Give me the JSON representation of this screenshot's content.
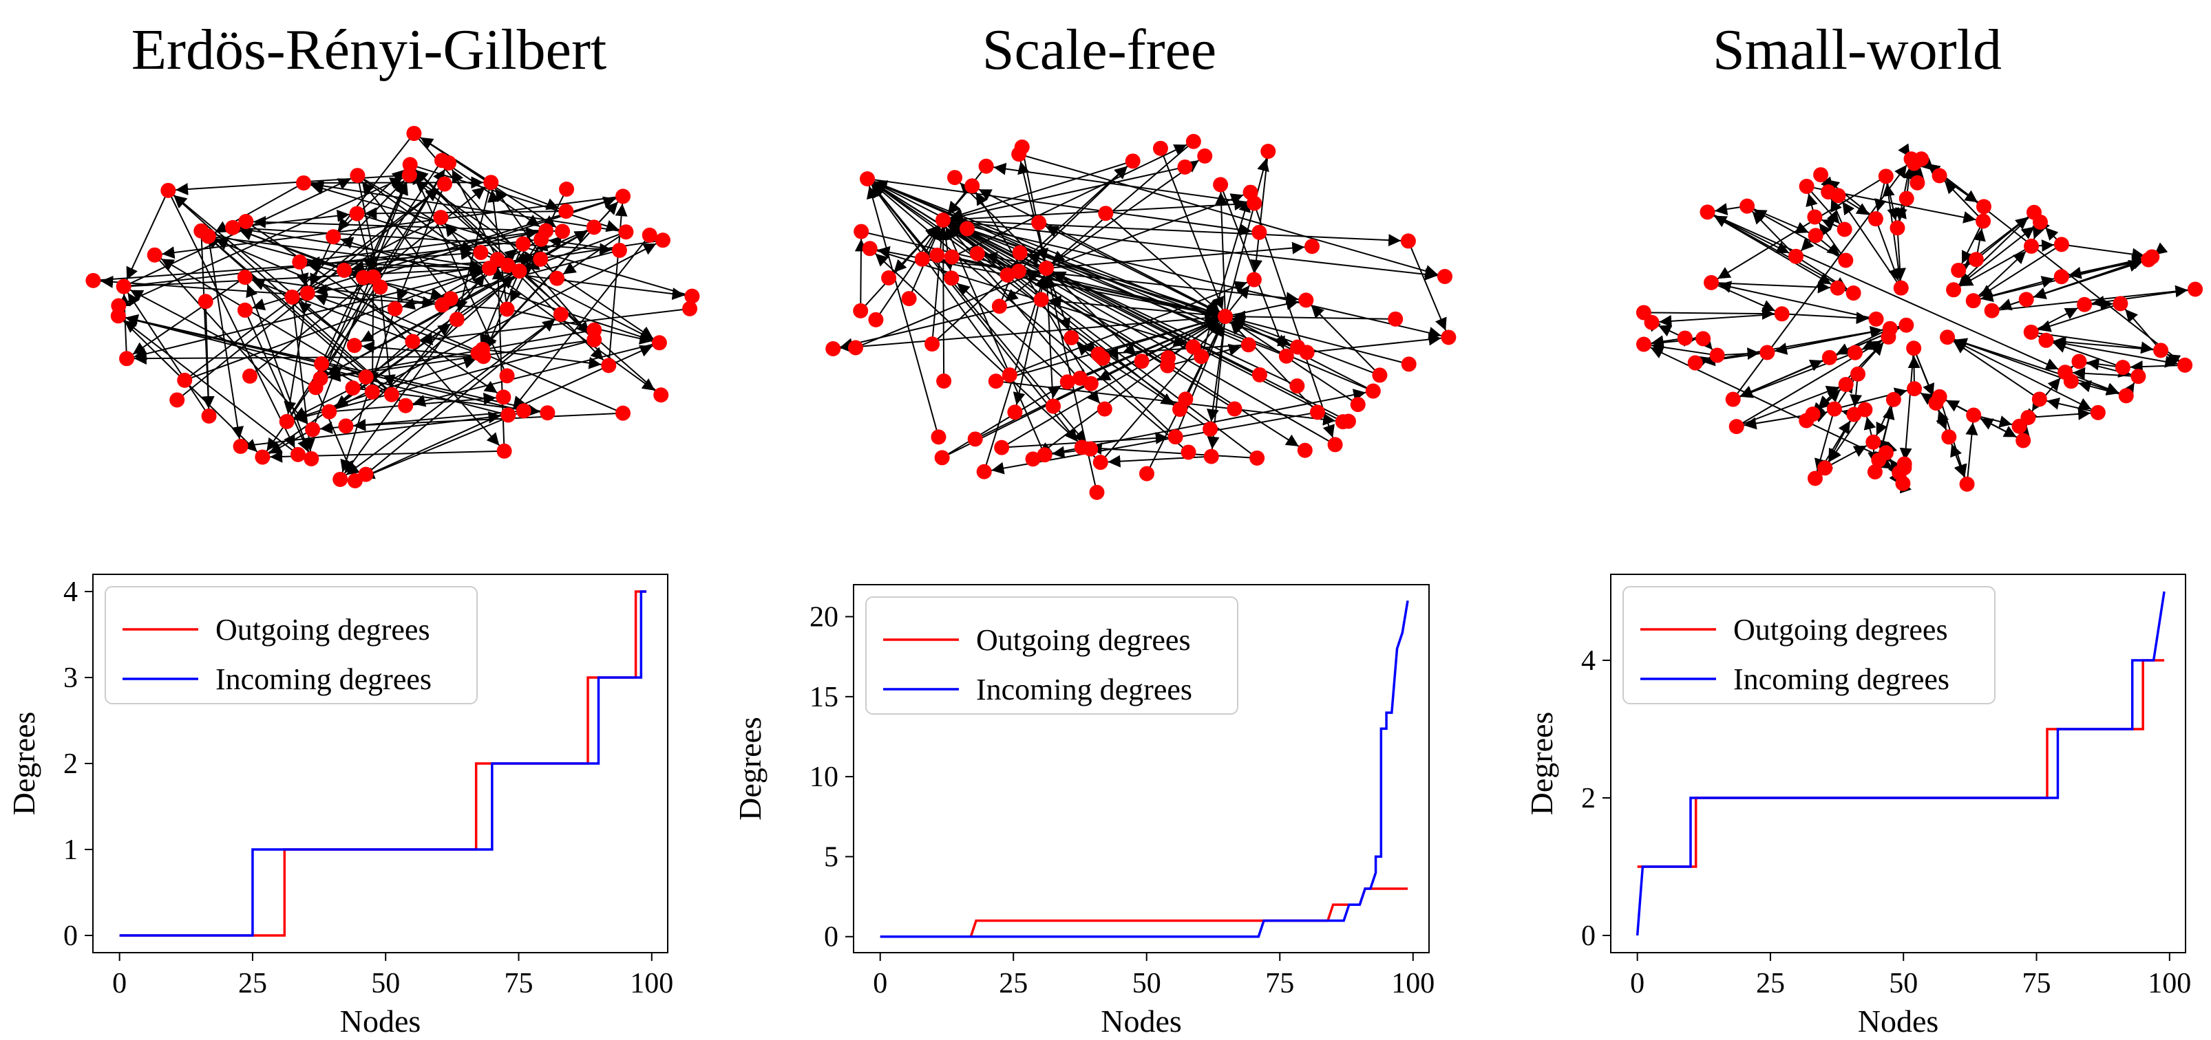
{
  "colors": {
    "node": "#ff0000",
    "edge": "#000000",
    "outgoing": "#ff0000",
    "incoming": "#0000ff"
  },
  "chart_data": [
    {
      "type": "line",
      "title": "Erdös-Rényi-Gilbert",
      "xlabel": "Nodes",
      "ylabel": "Degrees",
      "xlim": [
        -5,
        103
      ],
      "ylim": [
        -0.2,
        4.2
      ],
      "xticks": [
        "0",
        "25",
        "50",
        "75",
        "100"
      ],
      "yticks": [
        "0",
        "1",
        "2",
        "3",
        "4"
      ],
      "legend": "top-left",
      "series": [
        {
          "name": "Outgoing degrees",
          "steps": [
            [
              0,
              0
            ],
            [
              31,
              0
            ],
            [
              31,
              1
            ],
            [
              67,
              1
            ],
            [
              67,
              2
            ],
            [
              88,
              2
            ],
            [
              88,
              3
            ],
            [
              97,
              3
            ],
            [
              97,
              4
            ],
            [
              99,
              4
            ]
          ]
        },
        {
          "name": "Incoming degrees",
          "steps": [
            [
              0,
              0
            ],
            [
              25,
              0
            ],
            [
              25,
              1
            ],
            [
              70,
              1
            ],
            [
              70,
              2
            ],
            [
              90,
              2
            ],
            [
              90,
              3
            ],
            [
              98,
              3
            ],
            [
              98,
              4
            ],
            [
              99,
              4
            ]
          ]
        }
      ]
    },
    {
      "type": "line",
      "title": "Scale-free",
      "xlabel": "Nodes",
      "ylabel": "Degrees",
      "xlim": [
        -5,
        103
      ],
      "ylim": [
        -1,
        22
      ],
      "xticks": [
        "0",
        "25",
        "50",
        "75",
        "100"
      ],
      "yticks": [
        "0",
        "5",
        "10",
        "15",
        "20"
      ],
      "legend": "top-left",
      "series": [
        {
          "name": "Outgoing degrees",
          "steps": [
            [
              0,
              0
            ],
            [
              17,
              0
            ],
            [
              18,
              1
            ],
            [
              84,
              1
            ],
            [
              85,
              2
            ],
            [
              90,
              2
            ],
            [
              91,
              3
            ],
            [
              99,
              3
            ]
          ]
        },
        {
          "name": "Incoming degrees",
          "steps": [
            [
              0,
              0
            ],
            [
              71,
              0
            ],
            [
              72,
              1
            ],
            [
              87,
              1
            ],
            [
              88,
              2
            ],
            [
              90,
              2
            ],
            [
              91,
              3
            ],
            [
              92,
              3
            ],
            [
              93,
              4
            ],
            [
              93,
              5
            ],
            [
              94,
              5
            ],
            [
              94,
              13
            ],
            [
              95,
              13
            ],
            [
              95,
              14
            ],
            [
              96,
              14
            ],
            [
              97,
              18
            ],
            [
              98,
              19
            ],
            [
              99,
              21
            ]
          ]
        }
      ]
    },
    {
      "type": "line",
      "title": "Small-world",
      "xlabel": "Nodes",
      "ylabel": "Degrees",
      "xlim": [
        -5,
        103
      ],
      "ylim": [
        -0.25,
        5.25
      ],
      "xticks": [
        "0",
        "25",
        "50",
        "75",
        "100"
      ],
      "yticks": [
        "0",
        "2",
        "4"
      ],
      "legend": "top-left",
      "series": [
        {
          "name": "Outgoing degrees",
          "steps": [
            [
              0,
              1
            ],
            [
              11,
              1
            ],
            [
              11,
              2
            ],
            [
              77,
              2
            ],
            [
              77,
              3
            ],
            [
              95,
              3
            ],
            [
              95,
              4
            ],
            [
              99,
              4
            ]
          ]
        },
        {
          "name": "Incoming degrees",
          "steps": [
            [
              0,
              0
            ],
            [
              1,
              1
            ],
            [
              10,
              1
            ],
            [
              10,
              2
            ],
            [
              79,
              2
            ],
            [
              79,
              3
            ],
            [
              93,
              3
            ],
            [
              93,
              4
            ],
            [
              97,
              4
            ],
            [
              99,
              5
            ]
          ]
        }
      ]
    }
  ]
}
